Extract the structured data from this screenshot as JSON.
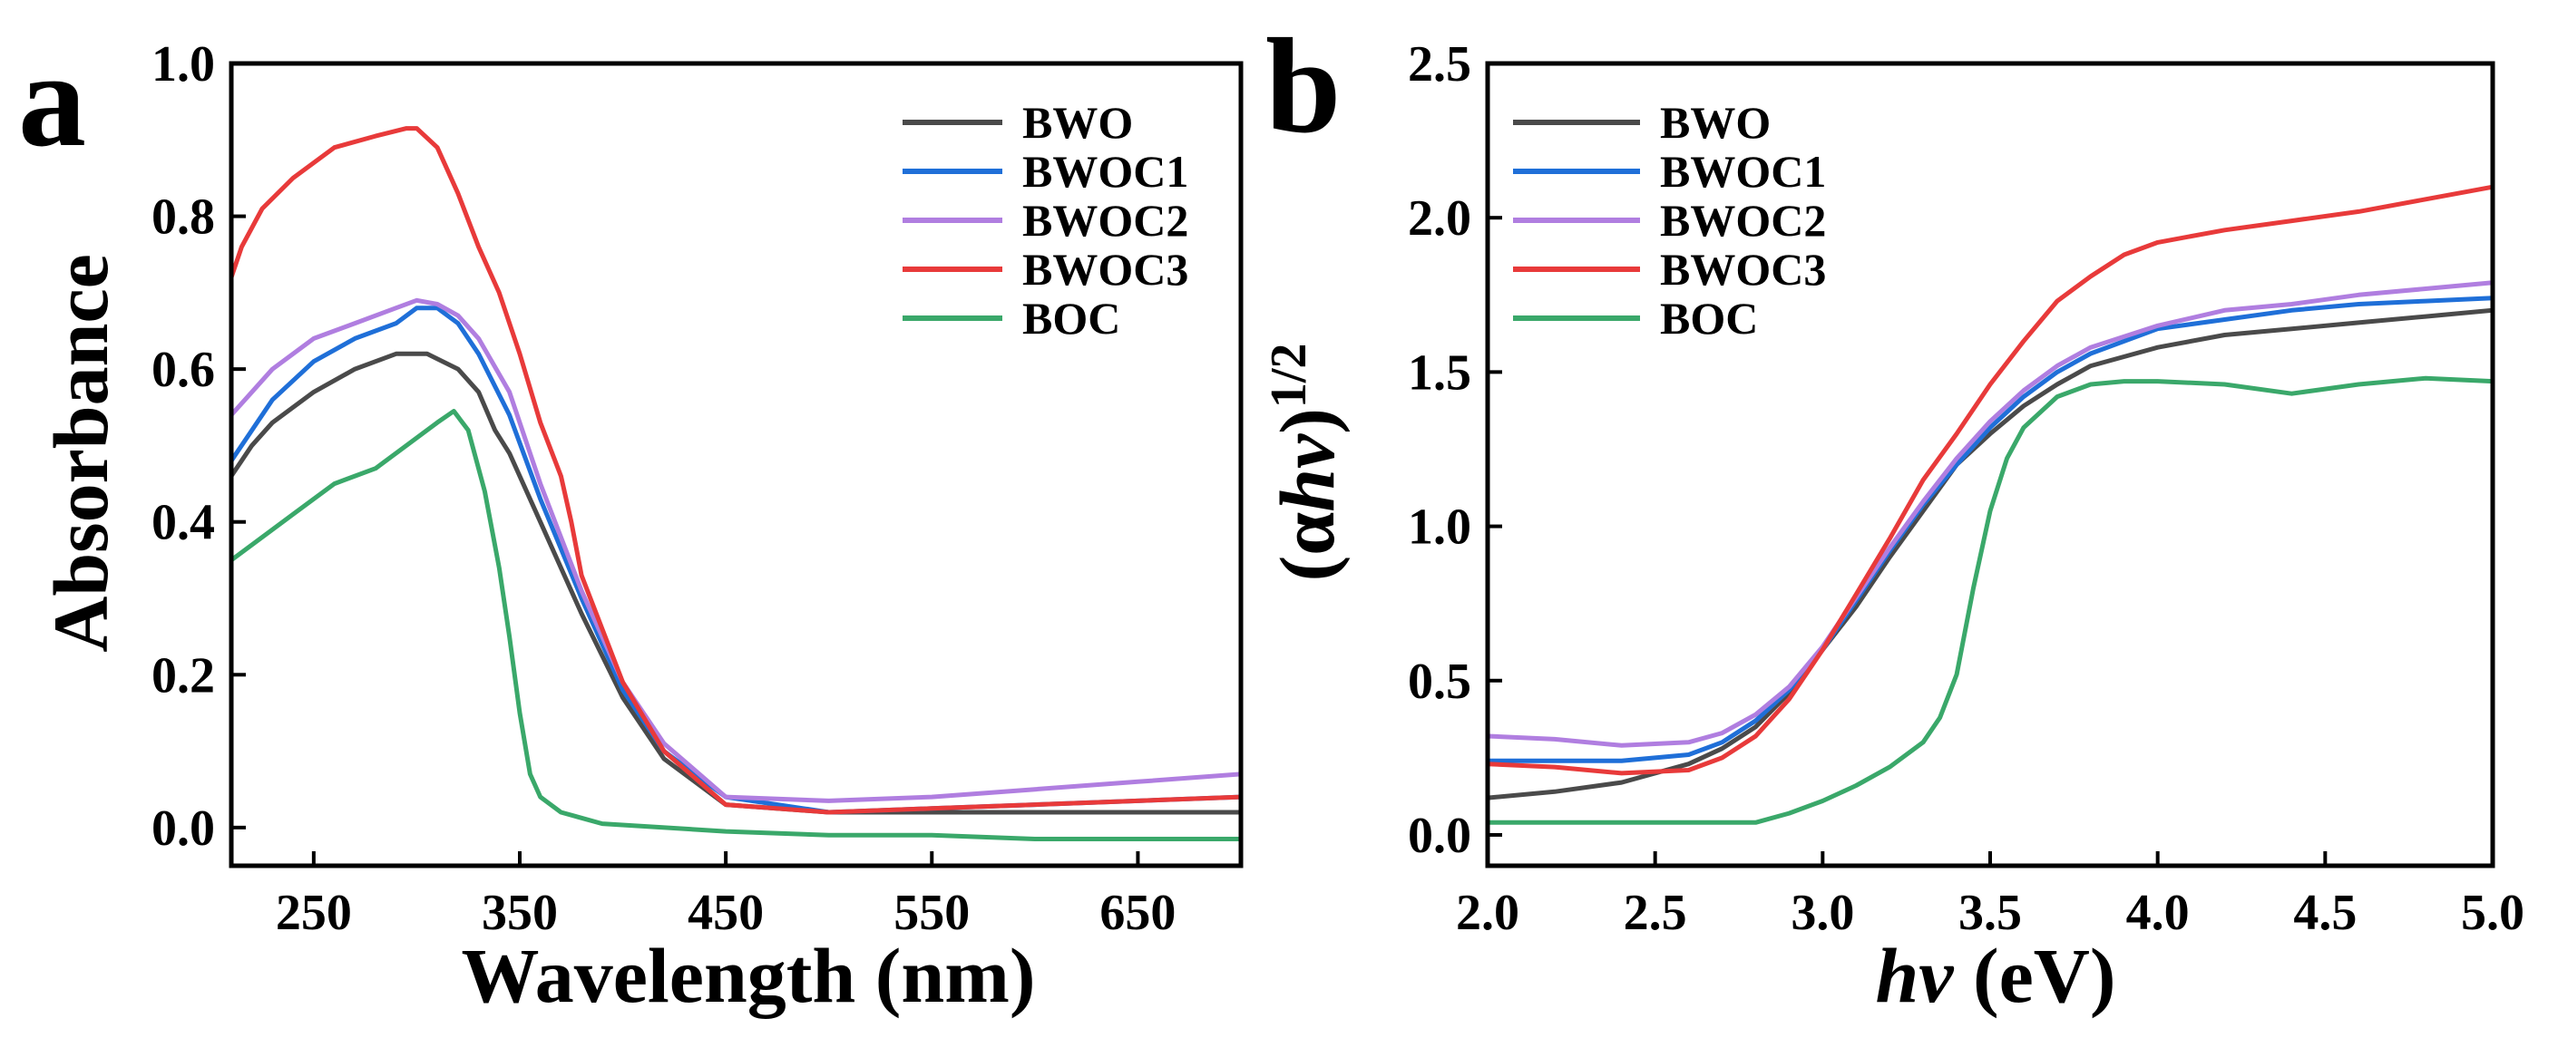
{
  "colors": {
    "BWO": "#4a4a4a",
    "BWOC1": "#1f6fd8",
    "BWOC2": "#b07ee0",
    "BWOC3": "#e83a3a",
    "BOC": "#3aa86a"
  },
  "chart_data": [
    {
      "type": "line",
      "panel_label": "a",
      "xlabel": "Wavelength (nm)",
      "ylabel": "Absorbance",
      "xlim": [
        210,
        700
      ],
      "ylim": [
        -0.05,
        1.0
      ],
      "xticks": [
        250,
        350,
        450,
        550,
        650
      ],
      "yticks": [
        0.0,
        0.2,
        0.4,
        0.6,
        0.8,
        1.0
      ],
      "xtick_labels": [
        "250",
        "350",
        "450",
        "550",
        "650"
      ],
      "ytick_labels": [
        "0.0",
        "0.2",
        "0.4",
        "0.6",
        "0.8",
        "1.0"
      ],
      "legend_position": "top-right",
      "series": [
        {
          "name": "BWO",
          "color_key": "BWO",
          "x": [
            210,
            220,
            230,
            250,
            270,
            290,
            305,
            320,
            330,
            338,
            345,
            360,
            380,
            400,
            420,
            450,
            500,
            550,
            600,
            650,
            700
          ],
          "y": [
            0.46,
            0.5,
            0.53,
            0.57,
            0.6,
            0.62,
            0.62,
            0.6,
            0.57,
            0.52,
            0.49,
            0.4,
            0.28,
            0.17,
            0.09,
            0.03,
            0.02,
            0.02,
            0.02,
            0.02,
            0.02
          ]
        },
        {
          "name": "BWOC1",
          "color_key": "BWOC1",
          "x": [
            210,
            220,
            230,
            250,
            270,
            290,
            300,
            310,
            320,
            330,
            345,
            360,
            380,
            400,
            420,
            450,
            500,
            550,
            600,
            650,
            700
          ],
          "y": [
            0.48,
            0.52,
            0.56,
            0.61,
            0.64,
            0.66,
            0.68,
            0.68,
            0.66,
            0.62,
            0.54,
            0.43,
            0.3,
            0.18,
            0.1,
            0.04,
            0.02,
            0.025,
            0.03,
            0.035,
            0.04
          ]
        },
        {
          "name": "BWOC2",
          "color_key": "BWOC2",
          "x": [
            210,
            220,
            230,
            250,
            270,
            290,
            300,
            310,
            320,
            330,
            345,
            360,
            380,
            400,
            420,
            450,
            500,
            550,
            600,
            650,
            700
          ],
          "y": [
            0.54,
            0.57,
            0.6,
            0.64,
            0.66,
            0.68,
            0.69,
            0.685,
            0.67,
            0.64,
            0.57,
            0.45,
            0.31,
            0.19,
            0.11,
            0.04,
            0.035,
            0.04,
            0.05,
            0.06,
            0.07
          ]
        },
        {
          "name": "BWOC3",
          "color_key": "BWOC3",
          "x": [
            210,
            215,
            225,
            240,
            260,
            280,
            295,
            300,
            310,
            320,
            330,
            340,
            350,
            360,
            370,
            375,
            380,
            400,
            420,
            450,
            500,
            550,
            600,
            650,
            700
          ],
          "y": [
            0.72,
            0.76,
            0.81,
            0.85,
            0.89,
            0.905,
            0.915,
            0.915,
            0.89,
            0.83,
            0.76,
            0.7,
            0.62,
            0.53,
            0.46,
            0.4,
            0.33,
            0.19,
            0.1,
            0.03,
            0.02,
            0.025,
            0.03,
            0.035,
            0.04
          ]
        },
        {
          "name": "BOC",
          "color_key": "BOC",
          "x": [
            210,
            220,
            230,
            240,
            250,
            260,
            270,
            280,
            290,
            300,
            310,
            318,
            325,
            333,
            340,
            345,
            350,
            355,
            360,
            370,
            390,
            450,
            500,
            550,
            600,
            650,
            700
          ],
          "y": [
            0.35,
            0.37,
            0.39,
            0.41,
            0.43,
            0.45,
            0.46,
            0.47,
            0.49,
            0.51,
            0.53,
            0.545,
            0.52,
            0.44,
            0.34,
            0.25,
            0.15,
            0.07,
            0.04,
            0.02,
            0.005,
            -0.005,
            -0.01,
            -0.01,
            -0.015,
            -0.015,
            -0.015
          ]
        }
      ]
    },
    {
      "type": "line",
      "panel_label": "b",
      "xlabel": "hv (eV)",
      "ylabel": "(αhv)1/2",
      "xlim": [
        2.0,
        5.0
      ],
      "ylim": [
        -0.1,
        2.5
      ],
      "xticks": [
        2.0,
        2.5,
        3.0,
        3.5,
        4.0,
        4.5,
        5.0
      ],
      "yticks": [
        0.0,
        0.5,
        1.0,
        1.5,
        2.0,
        2.5
      ],
      "xtick_labels": [
        "2.0",
        "2.5",
        "3.0",
        "3.5",
        "4.0",
        "4.5",
        "5.0"
      ],
      "ytick_labels": [
        "0.0",
        "0.5",
        "1.0",
        "1.5",
        "2.0",
        "2.5"
      ],
      "legend_position": "top-left",
      "series": [
        {
          "name": "BWO",
          "color_key": "BWO",
          "x": [
            2.0,
            2.2,
            2.4,
            2.6,
            2.7,
            2.8,
            2.9,
            3.0,
            3.1,
            3.2,
            3.3,
            3.4,
            3.5,
            3.6,
            3.7,
            3.8,
            4.0,
            4.2,
            4.4,
            4.6,
            4.8,
            5.0
          ],
          "y": [
            0.12,
            0.14,
            0.17,
            0.23,
            0.28,
            0.35,
            0.46,
            0.6,
            0.74,
            0.9,
            1.05,
            1.2,
            1.3,
            1.39,
            1.46,
            1.52,
            1.58,
            1.62,
            1.64,
            1.66,
            1.68,
            1.7
          ]
        },
        {
          "name": "BWOC1",
          "color_key": "BWOC1",
          "x": [
            2.0,
            2.2,
            2.4,
            2.6,
            2.7,
            2.8,
            2.9,
            3.0,
            3.1,
            3.2,
            3.3,
            3.4,
            3.5,
            3.6,
            3.7,
            3.8,
            4.0,
            4.2,
            4.4,
            4.6,
            4.8,
            5.0
          ],
          "y": [
            0.24,
            0.24,
            0.24,
            0.26,
            0.3,
            0.37,
            0.47,
            0.6,
            0.76,
            0.92,
            1.07,
            1.2,
            1.32,
            1.42,
            1.5,
            1.56,
            1.64,
            1.67,
            1.7,
            1.72,
            1.73,
            1.74
          ]
        },
        {
          "name": "BWOC2",
          "color_key": "BWOC2",
          "x": [
            2.0,
            2.2,
            2.4,
            2.6,
            2.7,
            2.8,
            2.9,
            3.0,
            3.1,
            3.2,
            3.3,
            3.4,
            3.5,
            3.6,
            3.7,
            3.8,
            4.0,
            4.2,
            4.4,
            4.6,
            4.8,
            5.0
          ],
          "y": [
            0.32,
            0.31,
            0.29,
            0.3,
            0.33,
            0.39,
            0.48,
            0.61,
            0.77,
            0.93,
            1.08,
            1.22,
            1.34,
            1.44,
            1.52,
            1.58,
            1.65,
            1.7,
            1.72,
            1.75,
            1.77,
            1.79
          ]
        },
        {
          "name": "BWOC3",
          "color_key": "BWOC3",
          "x": [
            2.0,
            2.2,
            2.4,
            2.6,
            2.7,
            2.8,
            2.9,
            3.0,
            3.1,
            3.2,
            3.3,
            3.4,
            3.5,
            3.6,
            3.7,
            3.8,
            3.9,
            4.0,
            4.2,
            4.4,
            4.6,
            4.8,
            5.0
          ],
          "y": [
            0.23,
            0.22,
            0.2,
            0.21,
            0.25,
            0.32,
            0.44,
            0.6,
            0.78,
            0.96,
            1.15,
            1.3,
            1.46,
            1.6,
            1.73,
            1.81,
            1.88,
            1.92,
            1.96,
            1.99,
            2.02,
            2.06,
            2.1
          ]
        },
        {
          "name": "BOC",
          "color_key": "BOC",
          "x": [
            2.0,
            2.4,
            2.8,
            2.9,
            3.0,
            3.1,
            3.2,
            3.3,
            3.35,
            3.4,
            3.45,
            3.5,
            3.55,
            3.6,
            3.7,
            3.8,
            3.9,
            4.0,
            4.2,
            4.4,
            4.6,
            4.8,
            5.0
          ],
          "y": [
            0.04,
            0.04,
            0.04,
            0.07,
            0.11,
            0.16,
            0.22,
            0.3,
            0.38,
            0.52,
            0.8,
            1.05,
            1.22,
            1.32,
            1.42,
            1.46,
            1.47,
            1.47,
            1.46,
            1.43,
            1.46,
            1.48,
            1.47
          ]
        }
      ]
    }
  ]
}
